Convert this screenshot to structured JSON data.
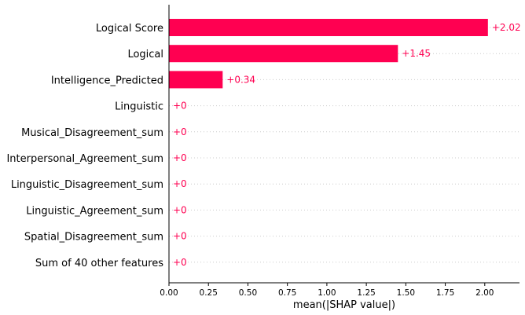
{
  "chart_data": {
    "type": "bar",
    "orientation": "horizontal",
    "categories": [
      "Logical Score",
      "Logical",
      "Intelligence_Predicted",
      "Linguistic",
      "Musical_Disagreement_sum",
      "Interpersonal_Agreement_sum",
      "Linguistic_Disagreement_sum",
      "Linguistic_Agreement_sum",
      "Spatial_Disagreement_sum",
      "Sum of 40 other features"
    ],
    "values": [
      2.02,
      1.45,
      0.34,
      0,
      0,
      0,
      0,
      0,
      0,
      0
    ],
    "value_labels": [
      "+2.02",
      "+1.45",
      "+0.34",
      "+0",
      "+0",
      "+0",
      "+0",
      "+0",
      "+0",
      "+0"
    ],
    "xlabel": "mean(|SHAP value|)",
    "ylabel": "",
    "title": "",
    "xlim": [
      0,
      2.22
    ],
    "xticks": [
      0.0,
      0.25,
      0.5,
      0.75,
      1.0,
      1.25,
      1.5,
      1.75,
      2.0
    ],
    "xtick_labels": [
      "0.00",
      "0.25",
      "0.50",
      "0.75",
      "1.00",
      "1.25",
      "1.50",
      "1.75",
      "2.00"
    ],
    "grid": "dotted horizontal lines per row",
    "bar_color": "#ff0051"
  }
}
